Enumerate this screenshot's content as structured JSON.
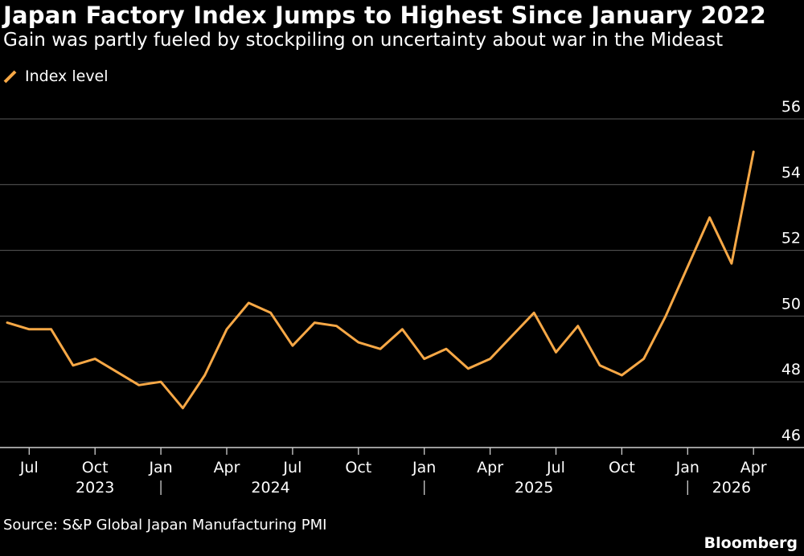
{
  "header": {
    "title": "Japan Factory Index Jumps to Highest Since January 2022",
    "subtitle": "Gain was partly fueled by stockpiling on uncertainty about war in the Mideast"
  },
  "footer": {
    "source": "Source: S&P Global Japan Manufacturing PMI",
    "brand": "Bloomberg"
  },
  "colors": {
    "background": "#000000",
    "line": "#F7A846",
    "grid": "#5a5a5a",
    "text": "#ffffff",
    "axis": "#cfcfcf"
  },
  "chart_data": {
    "type": "line",
    "title": "Japan Factory Index Jumps to Highest Since January 2022",
    "subtitle": "Gain was partly fueled by stockpiling on uncertainty about war in the Mideast",
    "legend": {
      "position": "top-left",
      "entries": [
        "Index level"
      ]
    },
    "grid": true,
    "yaxis": {
      "side": "right",
      "ylim": [
        46,
        56
      ],
      "ticks": [
        46,
        48,
        50,
        52,
        54,
        56
      ]
    },
    "xaxis": {
      "ticks": [
        {
          "date": "2023-07",
          "label": "Jul"
        },
        {
          "date": "2023-10",
          "label": "Oct"
        },
        {
          "date": "2024-01",
          "label": "Jan"
        },
        {
          "date": "2024-04",
          "label": "Apr"
        },
        {
          "date": "2024-07",
          "label": "Jul"
        },
        {
          "date": "2024-10",
          "label": "Oct"
        },
        {
          "date": "2025-01",
          "label": "Jan"
        },
        {
          "date": "2025-04",
          "label": "Apr"
        },
        {
          "date": "2025-07",
          "label": "Jul"
        },
        {
          "date": "2025-10",
          "label": "Oct"
        },
        {
          "date": "2026-01",
          "label": "Jan"
        },
        {
          "date": "2026-04",
          "label": "Apr"
        }
      ],
      "years": [
        {
          "label": "2023",
          "center": "2023-10"
        },
        {
          "label": "2024",
          "center": "2024-06"
        },
        {
          "label": "2025",
          "center": "2025-06"
        },
        {
          "label": "2026",
          "center": "2026-03"
        }
      ],
      "year_separators": [
        "2024-01",
        "2025-01",
        "2026-01"
      ]
    },
    "series": [
      {
        "name": "Index level",
        "color": "#F7A846",
        "points": [
          {
            "x": "2023-06",
            "y": 49.8
          },
          {
            "x": "2023-07",
            "y": 49.6
          },
          {
            "x": "2023-08",
            "y": 49.6
          },
          {
            "x": "2023-09",
            "y": 48.5
          },
          {
            "x": "2023-10",
            "y": 48.7
          },
          {
            "x": "2023-11",
            "y": 48.3
          },
          {
            "x": "2023-12",
            "y": 47.9
          },
          {
            "x": "2024-01",
            "y": 48.0
          },
          {
            "x": "2024-02",
            "y": 47.2
          },
          {
            "x": "2024-03",
            "y": 48.2
          },
          {
            "x": "2024-04",
            "y": 49.6
          },
          {
            "x": "2024-05",
            "y": 50.4
          },
          {
            "x": "2024-06",
            "y": 50.1
          },
          {
            "x": "2024-07",
            "y": 49.1
          },
          {
            "x": "2024-08",
            "y": 49.8
          },
          {
            "x": "2024-09",
            "y": 49.7
          },
          {
            "x": "2024-10",
            "y": 49.2
          },
          {
            "x": "2024-11",
            "y": 49.0
          },
          {
            "x": "2024-12",
            "y": 49.6
          },
          {
            "x": "2025-01",
            "y": 48.7
          },
          {
            "x": "2025-02",
            "y": 49.0
          },
          {
            "x": "2025-03",
            "y": 48.4
          },
          {
            "x": "2025-04",
            "y": 48.7
          },
          {
            "x": "2025-05",
            "y": 49.4
          },
          {
            "x": "2025-06",
            "y": 50.1
          },
          {
            "x": "2025-07",
            "y": 48.9
          },
          {
            "x": "2025-08",
            "y": 49.7
          },
          {
            "x": "2025-09",
            "y": 48.5
          },
          {
            "x": "2025-10",
            "y": 48.2
          },
          {
            "x": "2025-11",
            "y": 48.7
          },
          {
            "x": "2025-12",
            "y": 50.0
          },
          {
            "x": "2026-01",
            "y": 51.5
          },
          {
            "x": "2026-02",
            "y": 53.0
          },
          {
            "x": "2026-03",
            "y": 51.6
          },
          {
            "x": "2026-04",
            "y": 55.0
          }
        ]
      }
    ]
  }
}
